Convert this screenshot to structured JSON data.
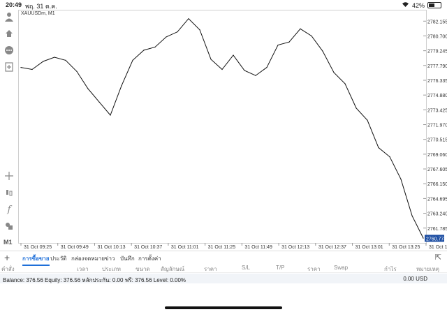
{
  "status": {
    "time": "20:49",
    "date": "พฤ. 31 ต.ค.",
    "battery": "42%",
    "wifi_icon": "wifi-icon",
    "battery_level": 0.42
  },
  "chart": {
    "symbol": "XAUUSDm, M1",
    "current_price": "2760.774",
    "price_ticks": [
      "2782.155",
      "2780.700",
      "2779.245",
      "2777.790",
      "2776.335",
      "2774.880",
      "2773.425",
      "2771.970",
      "2770.515",
      "2769.060",
      "2767.605",
      "2766.150",
      "2764.695",
      "2763.240",
      "2761.785"
    ],
    "time_ticks": [
      "31 Oct 09:25",
      "31 Oct 09:49",
      "31 Oct 10:13",
      "31 Oct 10:37",
      "31 Oct 11:01",
      "31 Oct 11:25",
      "31 Oct 11:49",
      "31 Oct 12:13",
      "31 Oct 12:37",
      "31 Oct 13:01",
      "31 Oct 13:25",
      "31 Oct 13:49"
    ],
    "colors": {
      "line": "#111111",
      "grid": "#e6e6e6",
      "price_tag": "#1e4fa3"
    }
  },
  "chart_data": {
    "type": "line",
    "title": "XAUUSDm, M1",
    "xlabel": "",
    "ylabel": "",
    "ylim": [
      2760.6,
      2783.0
    ],
    "x": [
      0,
      4,
      8,
      12,
      16,
      20,
      24,
      28,
      32,
      36,
      40,
      44,
      48,
      52,
      56,
      60,
      64,
      68,
      72,
      76,
      80,
      84,
      88,
      92,
      96,
      100,
      104,
      108,
      112,
      116,
      120,
      124,
      128,
      132,
      136,
      140,
      144
    ],
    "series": [
      {
        "values": [
          2777.6,
          2777.4,
          2778.2,
          2778.6,
          2778.3,
          2777.2,
          2775.5,
          2774.2,
          2772.9,
          2775.8,
          2778.3,
          2779.3,
          2779.6,
          2780.6,
          2781.1,
          2782.4,
          2781.3,
          2778.4,
          2777.4,
          2778.8,
          2777.3,
          2776.8,
          2777.6,
          2779.8,
          2780.1,
          2781.4,
          2780.7,
          2779.2,
          2777.1,
          2776.0,
          2773.6,
          2772.4,
          2769.7,
          2768.8,
          2766.6,
          2763.0,
          2760.8
        ]
      }
    ]
  },
  "sidebar": {
    "icons": [
      "account-icon",
      "trade-icon",
      "chat-icon",
      "add-chart-icon",
      "crosshair-icon",
      "chart-type-icon",
      "indicator-icon",
      "objects-icon"
    ],
    "timeframe": "M1"
  },
  "tabs": {
    "items": [
      "การซื้อขาย",
      "ประวัติ",
      "กล่องจดหมาย",
      "ข่าว",
      "บันทึก",
      "การตั้งค่า"
    ],
    "active": 0
  },
  "columns": [
    "คำสั่ง",
    "เวลา",
    "ประเภท",
    "ขนาด",
    "สัญลักษณ์",
    "ราคา",
    "S/L",
    "T/P",
    "ราคา",
    "Swap",
    "กำไร",
    "หมายเหตุ"
  ],
  "balance": {
    "text": "Balance: 376.56 Equity: 376.56 หลักประกัน: 0.00 ฟรี: 376.56 Level: 0.00%",
    "profit": "0.00  USD"
  }
}
